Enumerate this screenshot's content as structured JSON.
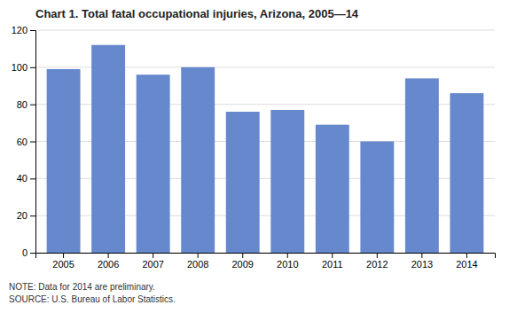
{
  "chart_data": {
    "type": "bar",
    "title": "Chart 1. Total fatal occupational injuries, Arizona, 2005—14",
    "categories": [
      "2005",
      "2006",
      "2007",
      "2008",
      "2009",
      "2010",
      "2011",
      "2012",
      "2013",
      "2014"
    ],
    "values": [
      99,
      112,
      96,
      100,
      76,
      77,
      69,
      60,
      94,
      86
    ],
    "color": "#6688cc",
    "ylim": [
      0,
      120
    ],
    "yticks": [
      0,
      20,
      40,
      60,
      80,
      100,
      120
    ],
    "grid": true,
    "annotations": [
      "NOTE: Data for 2014 are preliminary.",
      "SOURCE: U.S. Bureau of Labor Statistics."
    ]
  }
}
